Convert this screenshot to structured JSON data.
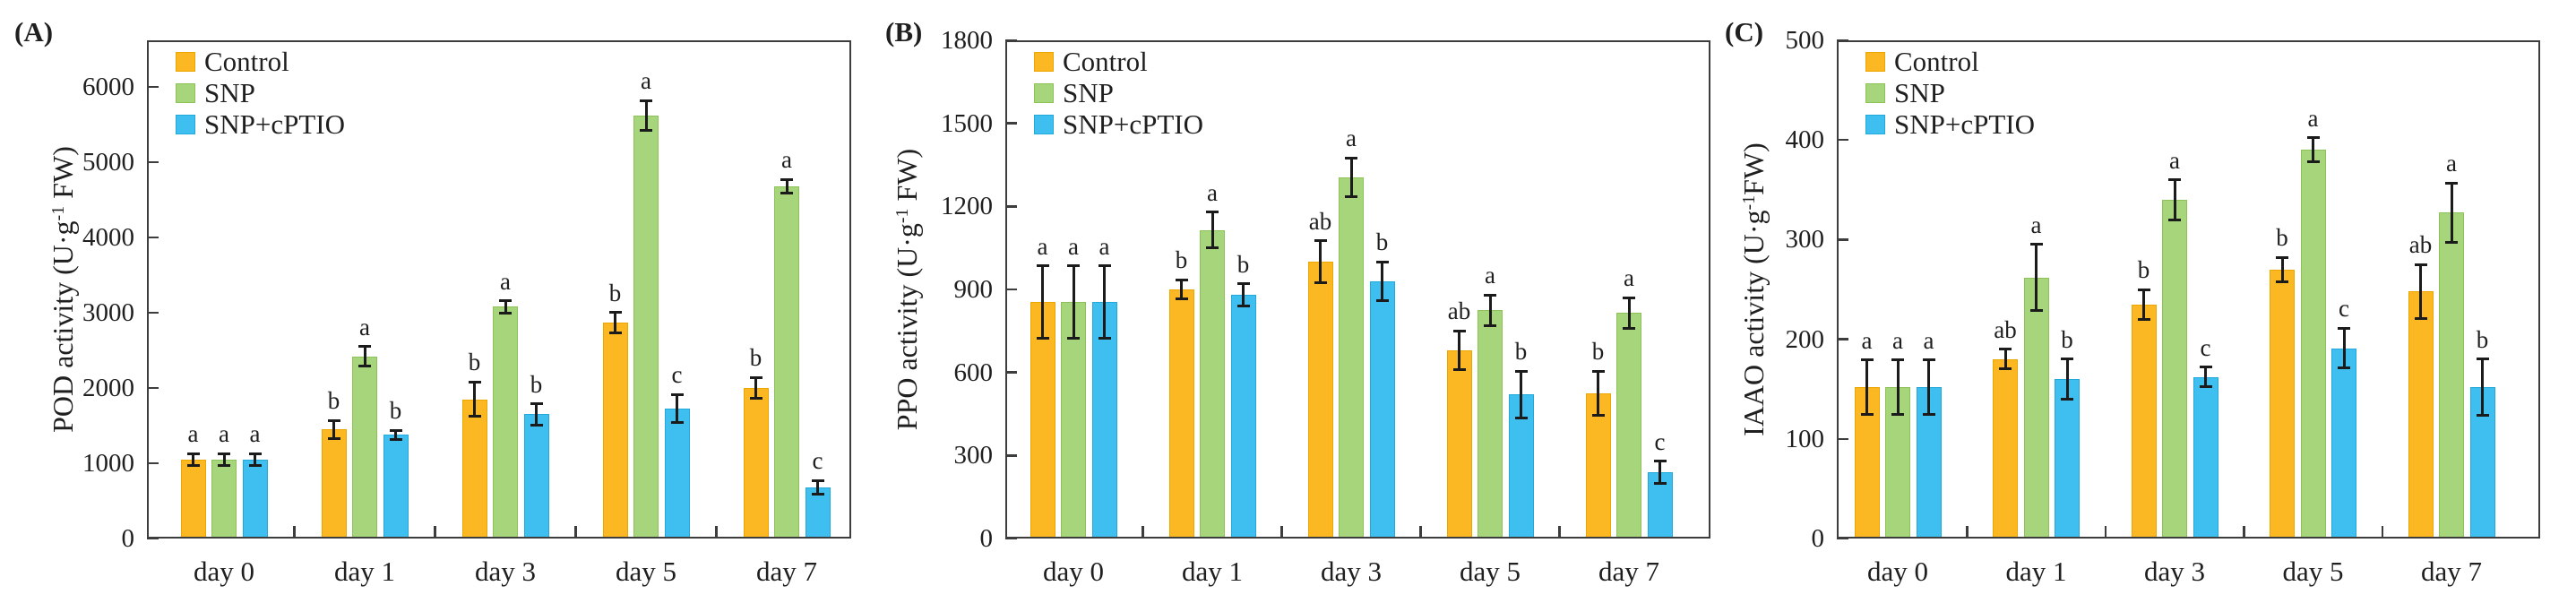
{
  "style": {
    "axis_color": "#3d3d3d",
    "text_color": "#1f1f1f",
    "error_bar_color": "#1b1b1b",
    "background": "#ffffff",
    "control_fill": "#FCB822",
    "snp_fill": "#A6D57C",
    "cptio_fill": "#3EBFEF"
  },
  "chart_data": [
    {
      "type": "bar",
      "panel_label": "(A)",
      "ylabel": {
        "pre": "POD activity (U·g",
        "sup": "-1",
        "post": " FW)"
      },
      "ylim": [
        0,
        6620
      ],
      "yticks": [
        0,
        1000,
        2000,
        3000,
        4000,
        5000,
        6000
      ],
      "grid": false,
      "legend_position": "top-left-inside",
      "categories": [
        "day 0",
        "day 1",
        "day 3",
        "day 5",
        "day 7"
      ],
      "series": [
        {
          "name": "Control",
          "fill": "#FCB822",
          "border": "#EDA500",
          "values": [
            1050,
            1450,
            1850,
            2870,
            2000
          ],
          "errors": [
            80,
            120,
            230,
            135,
            140
          ],
          "letters": [
            "a",
            "b",
            "b",
            "b",
            "b"
          ]
        },
        {
          "name": "SNP",
          "fill": "#A6D57C",
          "border": "#8CC256",
          "values": [
            1050,
            2420,
            3080,
            5620,
            4680
          ],
          "errors": [
            80,
            130,
            80,
            200,
            90
          ],
          "letters": [
            "a",
            "a",
            "a",
            "a",
            "a"
          ]
        },
        {
          "name": "SNP+cPTIO",
          "fill": "#3EBFEF",
          "border": "#22A9DC",
          "values": [
            1050,
            1380,
            1650,
            1730,
            680
          ],
          "errors": [
            80,
            60,
            140,
            185,
            90
          ],
          "letters": [
            "a",
            "b",
            "b",
            "c",
            "c"
          ]
        }
      ]
    },
    {
      "type": "bar",
      "panel_label": "(B)",
      "ylabel": {
        "pre": "PPO activity (U·g",
        "sup": "-1",
        "post": " FW)"
      },
      "ylim": [
        0,
        1800
      ],
      "yticks": [
        0,
        300,
        600,
        900,
        1200,
        1500,
        1800
      ],
      "grid": false,
      "legend_position": "top-left-inside",
      "categories": [
        "day 0",
        "day 1",
        "day 3",
        "day 5",
        "day 7"
      ],
      "series": [
        {
          "name": "Control",
          "fill": "#FCB822",
          "border": "#EDA500",
          "values": [
            855,
            900,
            1000,
            680,
            525
          ],
          "errors": [
            130,
            35,
            75,
            70,
            80
          ],
          "letters": [
            "a",
            "b",
            "ab",
            "ab",
            "b"
          ]
        },
        {
          "name": "SNP",
          "fill": "#A6D57C",
          "border": "#8CC256",
          "values": [
            855,
            1115,
            1305,
            825,
            815
          ],
          "errors": [
            130,
            65,
            70,
            55,
            55
          ],
          "letters": [
            "a",
            "a",
            "a",
            "a",
            "a"
          ]
        },
        {
          "name": "SNP+cPTIO",
          "fill": "#3EBFEF",
          "border": "#22A9DC",
          "values": [
            855,
            880,
            930,
            520,
            240
          ],
          "errors": [
            130,
            40,
            70,
            85,
            40
          ],
          "letters": [
            "a",
            "b",
            "b",
            "b",
            "c"
          ]
        }
      ]
    },
    {
      "type": "bar",
      "panel_label": "(C)",
      "ylabel": {
        "pre": "IAAO activity (U·g",
        "sup": "-1",
        "post": "FW)"
      },
      "ylim": [
        0,
        500
      ],
      "yticks": [
        0,
        100,
        200,
        300,
        400,
        500
      ],
      "grid": false,
      "legend_position": "top-left-inside",
      "categories": [
        "day 0",
        "day 1",
        "day 3",
        "day 5",
        "day 7"
      ],
      "series": [
        {
          "name": "Control",
          "fill": "#FCB822",
          "border": "#EDA500",
          "values": [
            152,
            180,
            235,
            270,
            248
          ],
          "errors": [
            27,
            10,
            15,
            12,
            27
          ],
          "letters": [
            "a",
            "ab",
            "b",
            "b",
            "ab"
          ]
        },
        {
          "name": "SNP",
          "fill": "#A6D57C",
          "border": "#8CC256",
          "values": [
            152,
            262,
            340,
            390,
            327
          ],
          "errors": [
            27,
            33,
            20,
            12,
            30
          ],
          "letters": [
            "a",
            "a",
            "a",
            "a",
            "a"
          ]
        },
        {
          "name": "SNP+cPTIO",
          "fill": "#3EBFEF",
          "border": "#22A9DC",
          "values": [
            152,
            160,
            162,
            191,
            152
          ],
          "errors": [
            27,
            20,
            10,
            20,
            28
          ],
          "letters": [
            "a",
            "b",
            "c",
            "c",
            "b"
          ]
        }
      ]
    }
  ]
}
